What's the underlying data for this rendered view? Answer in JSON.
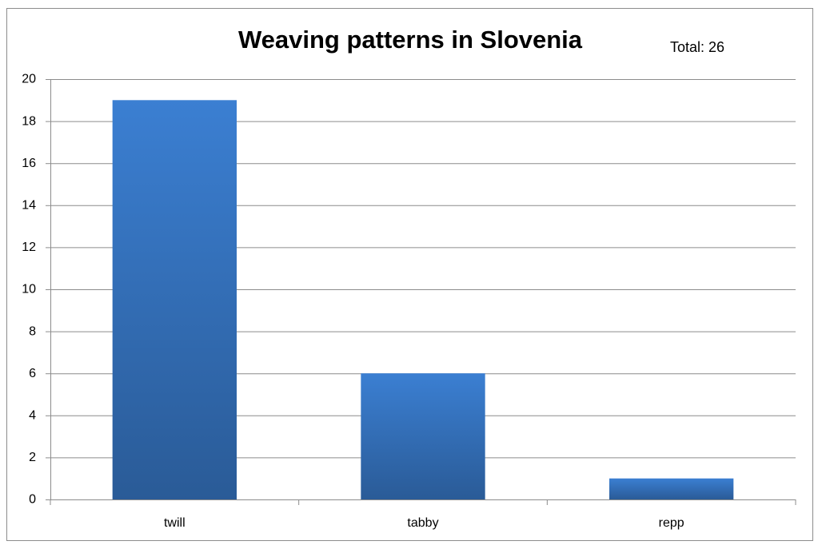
{
  "chart_data": {
    "type": "bar",
    "title": "Weaving patterns in Slovenia",
    "annotation": "Total: 26",
    "categories": [
      "twill",
      "tabby",
      "repp"
    ],
    "values": [
      19,
      6,
      1
    ],
    "color": "#3b7fd2",
    "ylim": [
      0,
      20
    ],
    "yticks": [
      0,
      2,
      4,
      6,
      8,
      10,
      12,
      14,
      16,
      18,
      20
    ],
    "grid": true
  }
}
